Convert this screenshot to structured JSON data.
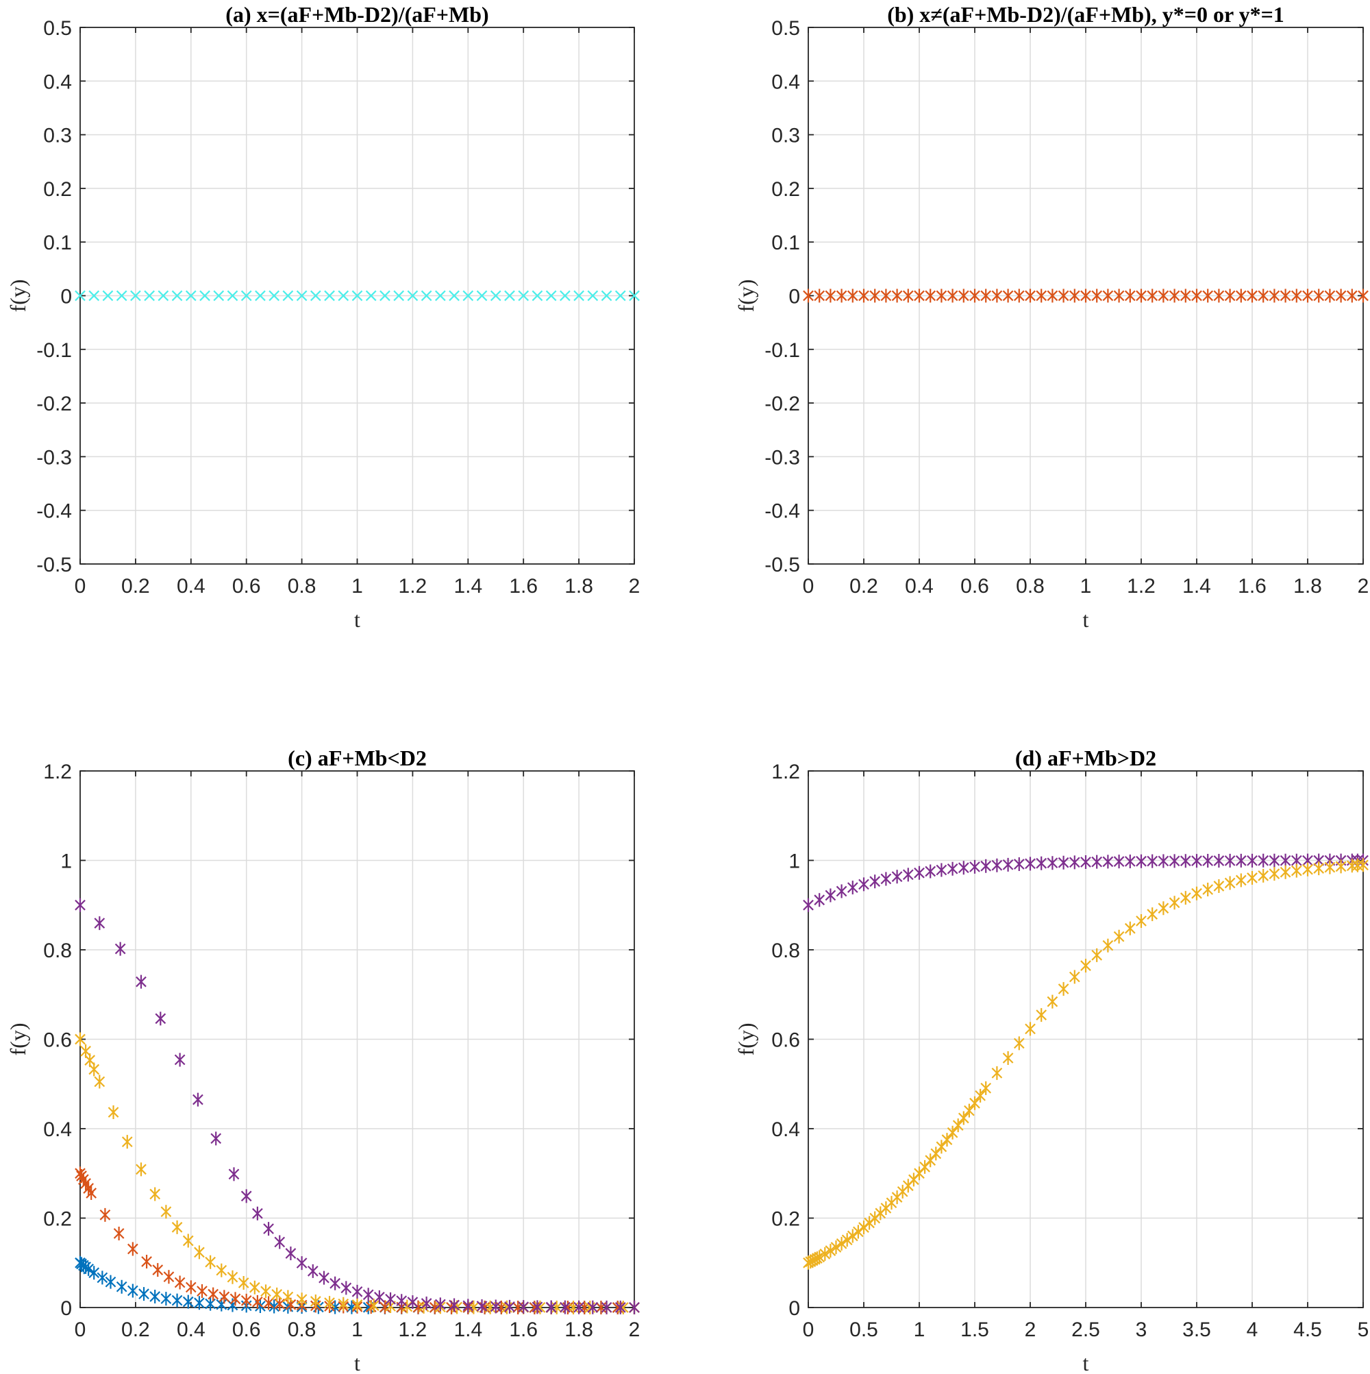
{
  "chart_data": [
    {
      "type": "scatter",
      "title": "(a) x=(aF+Mb-D2)/(aF+Mb)",
      "xlabel": "t",
      "ylabel": "f(y)",
      "xlim": [
        0,
        2
      ],
      "ylim": [
        -0.5,
        0.5
      ],
      "xticks": [
        "0",
        "0.2",
        "0.4",
        "0.6",
        "0.8",
        "1",
        "1.2",
        "1.4",
        "1.6",
        "1.8",
        "2"
      ],
      "yticks": [
        "-0.5",
        "-0.4",
        "-0.3",
        "-0.2",
        "-0.1",
        "0",
        "0.1",
        "0.2",
        "0.3",
        "0.4",
        "0.5"
      ],
      "grid": true,
      "series": [
        {
          "marker": "x",
          "color": "#4DEEEA",
          "points": {
            "generator": "constant",
            "x_start": 0,
            "x_end": 2,
            "count": 41,
            "y": 0
          }
        }
      ]
    },
    {
      "type": "scatter",
      "title": "(b) x≠(aF+Mb-D2)/(aF+Mb), y*=0 or y*=1",
      "xlabel": "t",
      "ylabel": "f(y)",
      "xlim": [
        0,
        2
      ],
      "ylim": [
        -0.5,
        0.5
      ],
      "xticks": [
        "0",
        "0.2",
        "0.4",
        "0.6",
        "0.8",
        "1",
        "1.2",
        "1.4",
        "1.6",
        "1.8",
        "2"
      ],
      "yticks": [
        "-0.5",
        "-0.4",
        "-0.3",
        "-0.2",
        "-0.1",
        "0",
        "0.1",
        "0.2",
        "0.3",
        "0.4",
        "0.5"
      ],
      "grid": true,
      "series": [
        {
          "marker": "asterisk",
          "color": "#D95319",
          "points": {
            "generator": "constant",
            "x_start": 0,
            "x_end": 2,
            "count": 51,
            "y": 0
          }
        }
      ]
    },
    {
      "type": "scatter",
      "title": "(c) aF+Mb<D2",
      "xlabel": "t",
      "ylabel": "f(y)",
      "xlim": [
        0,
        2
      ],
      "ylim": [
        0,
        1.2
      ],
      "xticks": [
        "0",
        "0.2",
        "0.4",
        "0.6",
        "0.8",
        "1",
        "1.2",
        "1.4",
        "1.6",
        "1.8",
        "2"
      ],
      "yticks": [
        "0",
        "0.2",
        "0.4",
        "0.6",
        "0.8",
        "1",
        "1.2"
      ],
      "grid": true,
      "series": [
        {
          "marker": "asterisk",
          "color": "#0072BD",
          "points": {
            "generator": "logistic",
            "y0": 0.1,
            "k": -5.5,
            "x": [
              0,
              0.005,
              0.012,
              0.02,
              0.03,
              0.05,
              0.08,
              0.11,
              0.15,
              0.19,
              0.23,
              0.27,
              0.31,
              0.35,
              0.39,
              0.43,
              0.47,
              0.51,
              0.55,
              0.6,
              0.65,
              0.7,
              0.75,
              0.8,
              0.86,
              0.92,
              0.98,
              1.04,
              1.1,
              1.16,
              1.22,
              1.28,
              1.34,
              1.4,
              1.46,
              1.52,
              1.58,
              1.64,
              1.7,
              1.76,
              1.82,
              1.88,
              1.94,
              2.0
            ]
          }
        },
        {
          "marker": "asterisk",
          "color": "#D95319",
          "points": {
            "generator": "logistic",
            "y0": 0.3,
            "k": -5.5,
            "x": [
              0,
              0.005,
              0.012,
              0.02,
              0.03,
              0.04,
              0.09,
              0.14,
              0.19,
              0.24,
              0.28,
              0.32,
              0.36,
              0.4,
              0.44,
              0.48,
              0.52,
              0.56,
              0.6,
              0.64,
              0.68,
              0.72,
              0.76,
              0.8,
              0.85,
              0.9,
              0.95,
              1.0,
              1.05,
              1.1,
              1.16,
              1.22,
              1.28,
              1.34,
              1.4,
              1.46,
              1.52,
              1.58,
              1.64,
              1.7,
              1.76,
              1.82,
              1.88,
              1.94,
              2.0
            ]
          }
        },
        {
          "marker": "asterisk",
          "color": "#EDB120",
          "points": {
            "generator": "logistic",
            "y0": 0.6,
            "k": -5.5,
            "x": [
              0,
              0.02,
              0.035,
              0.05,
              0.07,
              0.12,
              0.17,
              0.22,
              0.27,
              0.31,
              0.35,
              0.39,
              0.43,
              0.47,
              0.51,
              0.55,
              0.59,
              0.63,
              0.67,
              0.71,
              0.75,
              0.8,
              0.85,
              0.9,
              0.95,
              1.0,
              1.06,
              1.12,
              1.18,
              1.24,
              1.3,
              1.36,
              1.42,
              1.48,
              1.54,
              1.6,
              1.66,
              1.72,
              1.78,
              1.84,
              1.9,
              1.96,
              2.0
            ]
          }
        },
        {
          "marker": "asterisk",
          "color": "#7E2F8E",
          "points": {
            "generator": "logistic",
            "y0": 0.9,
            "k": -5.5,
            "x": [
              0,
              0.07,
              0.145,
              0.22,
              0.29,
              0.36,
              0.425,
              0.49,
              0.555,
              0.6,
              0.64,
              0.68,
              0.72,
              0.76,
              0.8,
              0.84,
              0.88,
              0.92,
              0.96,
              1.0,
              1.04,
              1.08,
              1.12,
              1.16,
              1.2,
              1.25,
              1.3,
              1.35,
              1.4,
              1.45,
              1.5,
              1.55,
              1.6,
              1.65,
              1.7,
              1.75,
              1.8,
              1.85,
              1.9,
              1.95,
              2.0
            ]
          }
        }
      ]
    },
    {
      "type": "scatter",
      "title": "(d) aF+Mb>D2",
      "xlabel": "t",
      "ylabel": "f(y)",
      "xlim": [
        0,
        5
      ],
      "ylim": [
        0,
        1.2
      ],
      "xticks": [
        "0",
        "0.5",
        "1",
        "1.5",
        "2",
        "2.5",
        "3",
        "3.5",
        "4",
        "4.5",
        "5"
      ],
      "yticks": [
        "0",
        "0.2",
        "0.4",
        "0.6",
        "0.8",
        "1",
        "1.2"
      ],
      "grid": true,
      "series": [
        {
          "marker": "asterisk",
          "color": "#7E2F8E",
          "points": {
            "generator": "logistic",
            "y0": 0.9,
            "k": 1.35,
            "x": [
              0,
              0.1,
              0.2,
              0.3,
              0.4,
              0.5,
              0.6,
              0.7,
              0.8,
              0.9,
              1.0,
              1.1,
              1.2,
              1.3,
              1.4,
              1.5,
              1.6,
              1.7,
              1.8,
              1.9,
              2.0,
              2.1,
              2.2,
              2.3,
              2.4,
              2.5,
              2.6,
              2.7,
              2.8,
              2.9,
              3.0,
              3.1,
              3.2,
              3.3,
              3.4,
              3.5,
              3.6,
              3.7,
              3.8,
              3.9,
              4.0,
              4.1,
              4.2,
              4.3,
              4.4,
              4.5,
              4.6,
              4.7,
              4.8,
              4.9,
              4.95,
              5.0
            ]
          }
        },
        {
          "marker": "asterisk",
          "color": "#EDB120",
          "points": {
            "generator": "logistic",
            "y0": 0.1,
            "k": 1.35,
            "x": [
              0,
              0.02,
              0.04,
              0.06,
              0.08,
              0.1,
              0.15,
              0.2,
              0.25,
              0.3,
              0.35,
              0.4,
              0.45,
              0.5,
              0.55,
              0.6,
              0.65,
              0.7,
              0.75,
              0.8,
              0.85,
              0.9,
              0.95,
              1.0,
              1.05,
              1.1,
              1.15,
              1.2,
              1.25,
              1.3,
              1.35,
              1.4,
              1.45,
              1.5,
              1.55,
              1.6,
              1.7,
              1.8,
              1.9,
              2.0,
              2.1,
              2.2,
              2.3,
              2.4,
              2.5,
              2.6,
              2.7,
              2.8,
              2.9,
              3.0,
              3.1,
              3.2,
              3.3,
              3.4,
              3.5,
              3.6,
              3.7,
              3.8,
              3.9,
              4.0,
              4.1,
              4.2,
              4.3,
              4.4,
              4.5,
              4.6,
              4.7,
              4.8,
              4.9,
              4.95,
              5.0
            ]
          }
        }
      ]
    }
  ]
}
